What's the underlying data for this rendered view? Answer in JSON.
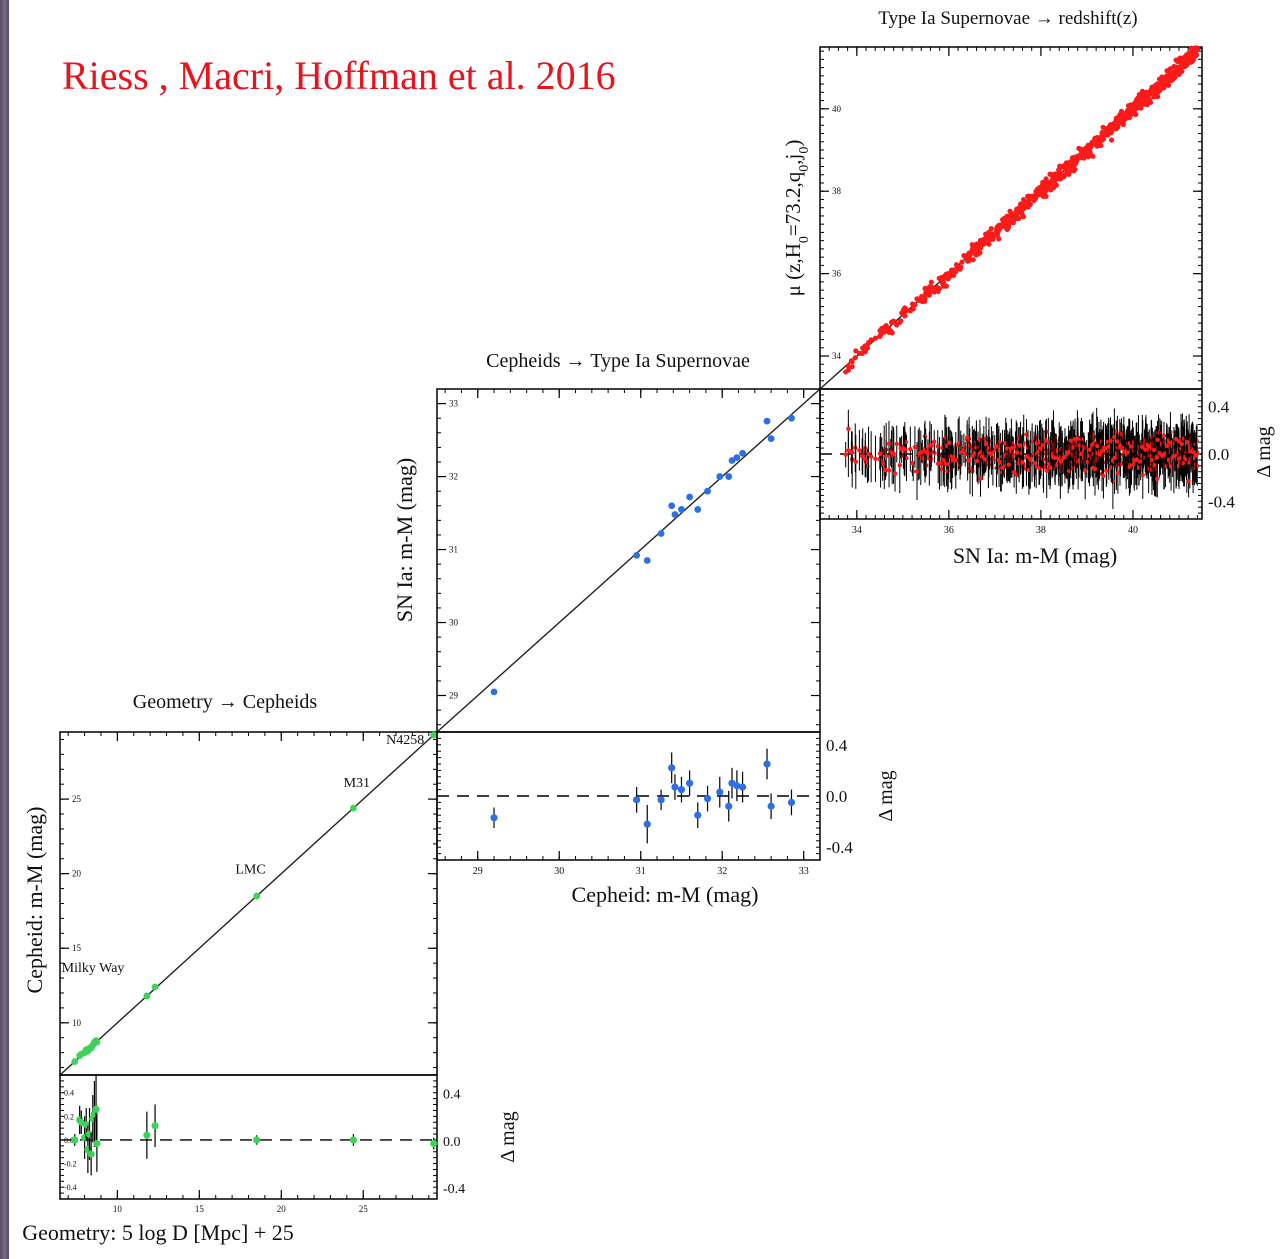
{
  "citation": "Riess , Macri, Hoffman et al. 2016",
  "colors": {
    "citation": "#e8141c",
    "geometry_points": "#3dd35a",
    "cepheid_points": "#2f6fe6",
    "sn_points": "#ff1a1a",
    "stripe": "#6a5a78"
  },
  "chart_data": [
    {
      "id": "geometry",
      "type": "scatter",
      "title": "Geometry → Cepheids",
      "xlabel": "Geometry: 5 log D [Mpc] + 25",
      "ylabel": "Cepheid: m-M (mag)",
      "resid_label": "Δ mag",
      "xlim": [
        6.5,
        29.5
      ],
      "ylim": [
        6.5,
        29.5
      ],
      "rlim": [
        -0.5,
        0.55
      ],
      "xticks": [
        10,
        15,
        20,
        25
      ],
      "yticks": [
        10,
        15,
        20,
        25
      ],
      "rticks": [
        -0.4,
        -0.2,
        0.0,
        0.2,
        0.4
      ],
      "rticks_right": [
        -0.4,
        0.0,
        0.4
      ],
      "annotations": [
        {
          "text": "Milky Way",
          "x": 6.6,
          "y": 13.4
        },
        {
          "text": "LMC",
          "x": 17.2,
          "y": 20.0
        },
        {
          "text": "M31",
          "x": 23.8,
          "y": 25.8
        },
        {
          "text": "N4258",
          "x": 26.4,
          "y": 28.7
        }
      ],
      "points": [
        {
          "x": 7.4,
          "y": 7.4,
          "r": 0.0,
          "e": 0.05
        },
        {
          "x": 7.7,
          "y": 7.8,
          "r": 0.17,
          "e": 0.12
        },
        {
          "x": 7.8,
          "y": 7.9,
          "r": 0.15,
          "e": 0.1
        },
        {
          "x": 8.0,
          "y": 8.0,
          "r": 0.02,
          "e": 0.18
        },
        {
          "x": 8.1,
          "y": 8.2,
          "r": 0.13,
          "e": 0.14
        },
        {
          "x": 8.2,
          "y": 8.1,
          "r": -0.08,
          "e": 0.2
        },
        {
          "x": 8.3,
          "y": 8.3,
          "r": 0.05,
          "e": 0.22
        },
        {
          "x": 8.4,
          "y": 8.3,
          "r": -0.12,
          "e": 0.18
        },
        {
          "x": 8.5,
          "y": 8.5,
          "r": 0.18,
          "e": 0.2
        },
        {
          "x": 8.6,
          "y": 8.7,
          "r": 0.22,
          "e": 0.28
        },
        {
          "x": 8.7,
          "y": 8.8,
          "r": 0.26,
          "e": 0.3
        },
        {
          "x": 8.75,
          "y": 8.7,
          "r": -0.03,
          "e": 0.24
        },
        {
          "x": 11.8,
          "y": 11.8,
          "r": 0.04,
          "e": 0.2
        },
        {
          "x": 12.3,
          "y": 12.4,
          "r": 0.12,
          "e": 0.18
        },
        {
          "x": 18.5,
          "y": 18.5,
          "r": 0.0,
          "e": 0.04
        },
        {
          "x": 24.4,
          "y": 24.4,
          "r": 0.0,
          "e": 0.05
        },
        {
          "x": 29.3,
          "y": 29.3,
          "r": -0.03,
          "e": 0.05
        }
      ]
    },
    {
      "id": "cepheid",
      "type": "scatter",
      "title": "Cepheids → Type Ia Supernovae",
      "xlabel": "Cepheid: m-M (mag)",
      "ylabel": "SN Ia: m-M (mag)",
      "resid_label": "Δ mag",
      "xlim": [
        28.5,
        33.2
      ],
      "ylim": [
        28.5,
        33.2
      ],
      "rlim": [
        -0.5,
        0.5
      ],
      "xticks": [
        29,
        30,
        31,
        32,
        33
      ],
      "yticks": [
        29,
        30,
        31,
        32,
        33
      ],
      "rticks_right": [
        -0.4,
        0.0,
        0.4
      ],
      "points": [
        {
          "x": 29.2,
          "y": 29.05,
          "r": -0.17,
          "e": 0.08
        },
        {
          "x": 30.95,
          "y": 30.92,
          "r": -0.03,
          "e": 0.1
        },
        {
          "x": 31.08,
          "y": 30.85,
          "r": -0.22,
          "e": 0.15
        },
        {
          "x": 31.25,
          "y": 31.22,
          "r": -0.03,
          "e": 0.08
        },
        {
          "x": 31.38,
          "y": 31.6,
          "r": 0.22,
          "e": 0.12
        },
        {
          "x": 31.42,
          "y": 31.48,
          "r": 0.07,
          "e": 0.1
        },
        {
          "x": 31.5,
          "y": 31.55,
          "r": 0.05,
          "e": 0.1
        },
        {
          "x": 31.6,
          "y": 31.72,
          "r": 0.1,
          "e": 0.1
        },
        {
          "x": 31.7,
          "y": 31.55,
          "r": -0.15,
          "e": 0.1
        },
        {
          "x": 31.82,
          "y": 31.8,
          "r": -0.02,
          "e": 0.1
        },
        {
          "x": 31.97,
          "y": 32.0,
          "r": 0.03,
          "e": 0.12
        },
        {
          "x": 32.08,
          "y": 32.0,
          "r": -0.08,
          "e": 0.12
        },
        {
          "x": 32.12,
          "y": 32.22,
          "r": 0.1,
          "e": 0.12
        },
        {
          "x": 32.18,
          "y": 32.26,
          "r": 0.08,
          "e": 0.12
        },
        {
          "x": 32.25,
          "y": 32.32,
          "r": 0.07,
          "e": 0.12
        },
        {
          "x": 32.55,
          "y": 32.76,
          "r": 0.25,
          "e": 0.12
        },
        {
          "x": 32.6,
          "y": 32.52,
          "r": -0.08,
          "e": 0.1
        },
        {
          "x": 32.85,
          "y": 32.8,
          "r": -0.05,
          "e": 0.1
        }
      ]
    },
    {
      "id": "supernova",
      "type": "scatter",
      "title": "Type Ia Supernovae → redshift(z)",
      "xlabel": "SN Ia: m-M (mag)",
      "ylabel": "μ (z,H0=73.2,q0,j0)",
      "resid_label": "Δ mag",
      "xlim": [
        33.2,
        41.5
      ],
      "ylim": [
        33.2,
        41.5
      ],
      "rlim": [
        -0.55,
        0.55
      ],
      "xticks": [
        34,
        36,
        38,
        40
      ],
      "yticks": [
        34,
        36,
        38,
        40
      ],
      "rticks_right": [
        -0.4,
        0.0,
        0.4
      ],
      "n_points": 740,
      "scatter_sigma": 0.13
    }
  ]
}
